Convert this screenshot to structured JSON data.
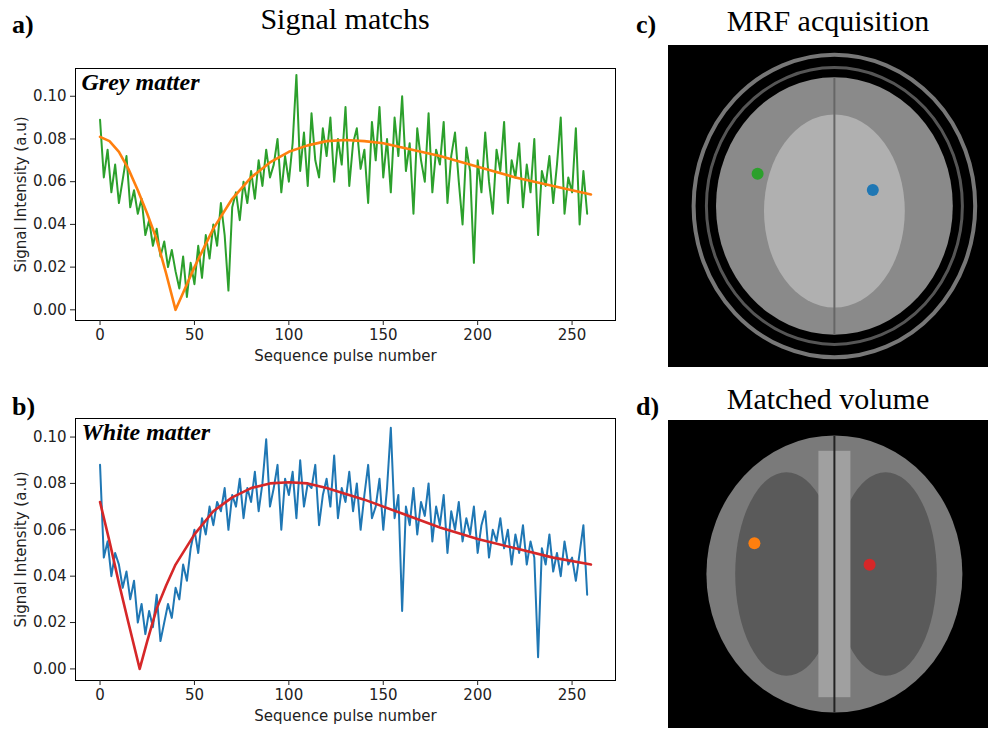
{
  "heading": "Signal matchs",
  "chart_data": [
    {
      "type": "line",
      "panel": "a)",
      "annotation": "Grey matter",
      "xlabel": "Sequence pulse number",
      "ylabel": "Signal Intensity (a.u)",
      "xlim": [
        -13,
        273
      ],
      "xticks": [
        0,
        50,
        100,
        150,
        200,
        250
      ],
      "ylim": [
        -0.005,
        0.113
      ],
      "yticks": [
        {
          "value": 0,
          "label": "0.00"
        },
        {
          "value": 0.02,
          "label": "0.02"
        },
        {
          "value": 0.04,
          "label": "0.04"
        },
        {
          "value": 0.06,
          "label": "0.06"
        },
        {
          "value": 0.08,
          "label": "0.08"
        },
        {
          "value": 0.1,
          "label": "0.10"
        }
      ],
      "grid": false,
      "series": [
        {
          "color": "#2ca02c",
          "x": [
            0,
            2,
            4,
            6,
            8,
            10,
            12,
            14,
            16,
            18,
            20,
            22,
            24,
            26,
            28,
            30,
            32,
            34,
            36,
            38,
            40,
            42,
            44,
            46,
            48,
            50,
            52,
            54,
            56,
            58,
            60,
            62,
            64,
            66,
            68,
            70,
            72,
            74,
            76,
            78,
            80,
            82,
            84,
            86,
            88,
            90,
            92,
            94,
            96,
            98,
            100,
            102,
            104,
            106,
            108,
            110,
            112,
            114,
            116,
            118,
            120,
            122,
            124,
            126,
            128,
            130,
            132,
            134,
            136,
            138,
            140,
            142,
            144,
            146,
            148,
            150,
            152,
            154,
            156,
            158,
            160,
            162,
            164,
            166,
            168,
            170,
            172,
            174,
            176,
            178,
            180,
            182,
            184,
            186,
            188,
            190,
            192,
            194,
            196,
            198,
            200,
            202,
            204,
            206,
            208,
            210,
            212,
            214,
            216,
            218,
            220,
            222,
            224,
            226,
            228,
            230,
            232,
            234,
            236,
            238,
            240,
            242,
            244,
            246,
            248,
            250,
            252,
            254,
            256,
            258
          ],
          "values": [
            0.089,
            0.062,
            0.075,
            0.055,
            0.068,
            0.05,
            0.061,
            0.072,
            0.048,
            0.056,
            0.045,
            0.052,
            0.035,
            0.042,
            0.03,
            0.038,
            0.025,
            0.032,
            0.02,
            0.028,
            0.018,
            0.01,
            0.025,
            0.006,
            0.022,
            0.012,
            0.03,
            0.015,
            0.035,
            0.024,
            0.04,
            0.03,
            0.05,
            0.035,
            0.009,
            0.048,
            0.055,
            0.042,
            0.06,
            0.05,
            0.065,
            0.052,
            0.07,
            0.058,
            0.075,
            0.062,
            0.068,
            0.08,
            0.055,
            0.072,
            0.06,
            0.078,
            0.11,
            0.065,
            0.083,
            0.058,
            0.092,
            0.07,
            0.062,
            0.085,
            0.072,
            0.09,
            0.06,
            0.08,
            0.068,
            0.095,
            0.058,
            0.078,
            0.085,
            0.066,
            0.075,
            0.05,
            0.088,
            0.07,
            0.095,
            0.062,
            0.08,
            0.055,
            0.09,
            0.072,
            0.1,
            0.065,
            0.078,
            0.045,
            0.085,
            0.07,
            0.06,
            0.092,
            0.055,
            0.075,
            0.068,
            0.088,
            0.05,
            0.072,
            0.083,
            0.06,
            0.04,
            0.076,
            0.065,
            0.022,
            0.07,
            0.055,
            0.083,
            0.06,
            0.045,
            0.075,
            0.065,
            0.088,
            0.05,
            0.07,
            0.062,
            0.078,
            0.048,
            0.068,
            0.055,
            0.08,
            0.035,
            0.065,
            0.058,
            0.072,
            0.05,
            0.068,
            0.09,
            0.045,
            0.062,
            0.055,
            0.085,
            0.04,
            0.065,
            0.045
          ]
        },
        {
          "color": "#ff7f0e",
          "x": [
            0,
            5,
            10,
            15,
            20,
            25,
            30,
            35,
            40,
            45,
            50,
            55,
            60,
            70,
            80,
            90,
            100,
            110,
            120,
            130,
            140,
            150,
            160,
            180,
            200,
            220,
            240,
            260
          ],
          "values": [
            0.081,
            0.079,
            0.074,
            0.066,
            0.056,
            0.045,
            0.033,
            0.017,
            0.0,
            0.01,
            0.02,
            0.029,
            0.038,
            0.052,
            0.062,
            0.069,
            0.074,
            0.077,
            0.079,
            0.0795,
            0.079,
            0.078,
            0.076,
            0.072,
            0.067,
            0.062,
            0.058,
            0.054
          ]
        }
      ]
    },
    {
      "type": "line",
      "panel": "b)",
      "annotation": "White matter",
      "xlabel": "Sequence pulse number",
      "ylabel": "Signal Intensity (a.u)",
      "xlim": [
        -13,
        273
      ],
      "xticks": [
        0,
        50,
        100,
        150,
        200,
        250
      ],
      "ylim": [
        -0.005,
        0.108
      ],
      "yticks": [
        {
          "value": 0,
          "label": "0.00"
        },
        {
          "value": 0.02,
          "label": "0.02"
        },
        {
          "value": 0.04,
          "label": "0.04"
        },
        {
          "value": 0.06,
          "label": "0.06"
        },
        {
          "value": 0.08,
          "label": "0.08"
        },
        {
          "value": 0.1,
          "label": "0.10"
        }
      ],
      "grid": false,
      "series": [
        {
          "color": "#1f77b4",
          "x": [
            0,
            2,
            4,
            6,
            8,
            10,
            12,
            14,
            16,
            18,
            20,
            22,
            24,
            26,
            28,
            30,
            32,
            34,
            36,
            38,
            40,
            42,
            44,
            46,
            48,
            50,
            52,
            54,
            56,
            58,
            60,
            62,
            64,
            66,
            68,
            70,
            72,
            74,
            76,
            78,
            80,
            82,
            84,
            86,
            88,
            90,
            92,
            94,
            96,
            98,
            100,
            102,
            104,
            106,
            108,
            110,
            112,
            114,
            116,
            118,
            120,
            122,
            124,
            126,
            128,
            130,
            132,
            134,
            136,
            138,
            140,
            142,
            144,
            146,
            148,
            150,
            152,
            154,
            156,
            158,
            160,
            162,
            164,
            166,
            168,
            170,
            172,
            174,
            176,
            178,
            180,
            182,
            184,
            186,
            188,
            190,
            192,
            194,
            196,
            198,
            200,
            202,
            204,
            206,
            208,
            210,
            212,
            214,
            216,
            218,
            220,
            222,
            224,
            226,
            228,
            230,
            232,
            234,
            236,
            238,
            240,
            242,
            244,
            246,
            248,
            250,
            252,
            254,
            256,
            258
          ],
          "values": [
            0.088,
            0.048,
            0.055,
            0.04,
            0.05,
            0.045,
            0.035,
            0.042,
            0.03,
            0.038,
            0.02,
            0.028,
            0.015,
            0.025,
            0.018,
            0.032,
            0.012,
            0.02,
            0.028,
            0.022,
            0.035,
            0.03,
            0.045,
            0.038,
            0.052,
            0.06,
            0.05,
            0.065,
            0.058,
            0.07,
            0.062,
            0.072,
            0.068,
            0.078,
            0.06,
            0.075,
            0.07,
            0.082,
            0.065,
            0.078,
            0.072,
            0.085,
            0.068,
            0.08,
            0.099,
            0.07,
            0.078,
            0.088,
            0.06,
            0.082,
            0.075,
            0.085,
            0.065,
            0.09,
            0.07,
            0.08,
            0.078,
            0.088,
            0.062,
            0.075,
            0.082,
            0.07,
            0.092,
            0.065,
            0.078,
            0.072,
            0.085,
            0.068,
            0.08,
            0.06,
            0.075,
            0.088,
            0.065,
            0.07,
            0.082,
            0.06,
            0.078,
            0.104,
            0.065,
            0.075,
            0.025,
            0.07,
            0.062,
            0.078,
            0.058,
            0.072,
            0.066,
            0.08,
            0.055,
            0.07,
            0.062,
            0.075,
            0.05,
            0.068,
            0.06,
            0.072,
            0.055,
            0.065,
            0.058,
            0.07,
            0.05,
            0.062,
            0.068,
            0.048,
            0.06,
            0.055,
            0.065,
            0.052,
            0.06,
            0.045,
            0.058,
            0.05,
            0.062,
            0.045,
            0.055,
            0.048,
            0.005,
            0.052,
            0.045,
            0.058,
            0.042,
            0.05,
            0.04,
            0.055,
            0.045,
            0.048,
            0.038,
            0.05,
            0.062,
            0.032
          ]
        },
        {
          "color": "#d62728",
          "x": [
            0,
            5,
            10,
            15,
            21,
            25,
            30,
            35,
            40,
            50,
            60,
            70,
            80,
            90,
            100,
            110,
            120,
            140,
            160,
            180,
            200,
            220,
            240,
            260
          ],
          "values": [
            0.072,
            0.055,
            0.037,
            0.02,
            0.0,
            0.012,
            0.026,
            0.036,
            0.045,
            0.058,
            0.068,
            0.074,
            0.078,
            0.08,
            0.0805,
            0.08,
            0.078,
            0.073,
            0.067,
            0.061,
            0.056,
            0.052,
            0.048,
            0.045
          ]
        }
      ]
    }
  ],
  "images": [
    {
      "panel": "c)",
      "title": "MRF acquisition",
      "markers": [
        {
          "color": "#2ca02c"
        },
        {
          "color": "#1f77b4"
        }
      ]
    },
    {
      "panel": "d)",
      "title": "Matched volume",
      "markers": [
        {
          "color": "#ff7f0e"
        },
        {
          "color": "#d62728"
        }
      ]
    }
  ]
}
